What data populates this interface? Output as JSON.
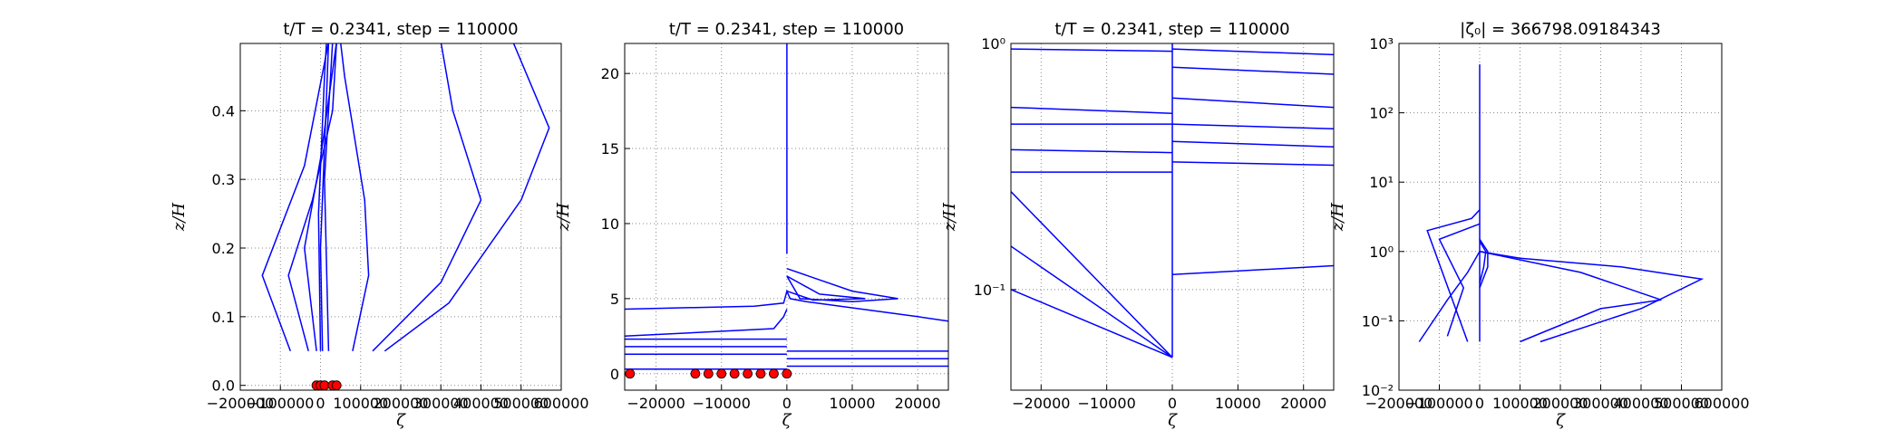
{
  "chart_data": [
    {
      "type": "line",
      "title": "t/T = 0.2341, step = 110000",
      "xlabel": "ζ",
      "ylabel": "z/H",
      "grid": true,
      "xlim": [
        -200000,
        600000
      ],
      "ylim": [
        -0.007,
        0.498
      ],
      "xticks": [
        {
          "value": -200000,
          "label": "−200000"
        },
        {
          "value": -100000,
          "label": "−100000"
        },
        0,
        100000,
        200000,
        300000,
        400000,
        500000,
        600000
      ],
      "yticks": [
        {
          "value": 0,
          "label": "0.0"
        },
        0.1,
        0.2,
        0.3,
        0.4
      ],
      "series": [
        {
          "color": "#0000ff",
          "x": [
            -75000,
            -145000,
            -40000,
            20000
          ],
          "y": [
            0.05,
            0.16,
            0.32,
            0.5
          ]
        },
        {
          "color": "#0000ff",
          "x": [
            -30000,
            -80000,
            -20000,
            30000,
            40000
          ],
          "y": [
            0.05,
            0.16,
            0.27,
            0.4,
            0.5
          ]
        },
        {
          "color": "#0000ff",
          "x": [
            -10000,
            -40000,
            0,
            40000
          ],
          "y": [
            0.05,
            0.2,
            0.33,
            0.5
          ]
        },
        {
          "color": "#0000ff",
          "x": [
            80000,
            120000,
            110000,
            60000,
            50000
          ],
          "y": [
            0.05,
            0.16,
            0.27,
            0.45,
            0.5
          ]
        },
        {
          "color": "#0000ff",
          "x": [
            130000,
            300000,
            400000,
            330000,
            300000
          ],
          "y": [
            0.05,
            0.15,
            0.27,
            0.4,
            0.5
          ]
        },
        {
          "color": "#0000ff",
          "x": [
            160000,
            320000,
            500000,
            570000,
            480000
          ],
          "y": [
            0.05,
            0.12,
            0.27,
            0.375,
            0.5
          ]
        },
        {
          "color": "#0000ff",
          "x": [
            0,
            -5000,
            10000,
            15000
          ],
          "y": [
            0.05,
            0.25,
            0.45,
            0.5
          ]
        },
        {
          "color": "#0000ff",
          "x": [
            5000,
            0,
            15000,
            20000
          ],
          "y": [
            0.05,
            0.2,
            0.42,
            0.5
          ]
        },
        {
          "color": "#0000ff",
          "x": [
            20000,
            10000,
            25000,
            30000
          ],
          "y": [
            0.05,
            0.3,
            0.45,
            0.5
          ]
        },
        {
          "color": "#ff0000",
          "marker": true,
          "x": [
            -10000,
            0,
            10000,
            30000,
            40000
          ],
          "y": [
            0,
            0,
            0,
            0,
            0
          ]
        }
      ]
    },
    {
      "type": "line",
      "title": "t/T = 0.2341, step = 110000",
      "xlabel": "ζ",
      "ylabel": "z/H",
      "grid": true,
      "xlim": [
        -24800,
        24700
      ],
      "ylim": [
        -1.1,
        22
      ],
      "xticks": [
        {
          "value": -20000,
          "label": "−20000"
        },
        {
          "value": -10000,
          "label": "−10000"
        },
        0,
        10000,
        20000
      ],
      "yticks": [
        0,
        5,
        10,
        15,
        20
      ],
      "series": [
        {
          "color": "#0000ff",
          "x": [
            0,
            0,
            0
          ],
          "y": [
            8,
            15,
            22
          ]
        },
        {
          "color": "#0000ff",
          "x": [
            -24800,
            -5000,
            -500,
            0,
            500,
            3000,
            20000,
            24700
          ],
          "y": [
            4.3,
            4.5,
            4.7,
            5.5,
            5,
            4.8,
            3.8,
            3.5
          ]
        },
        {
          "color": "#0000ff",
          "x": [
            0,
            10000,
            17000,
            10000,
            2000,
            0
          ],
          "y": [
            7,
            5.5,
            5,
            4.8,
            5,
            6.5
          ]
        },
        {
          "color": "#0000ff",
          "x": [
            0,
            5000,
            12000,
            4000,
            0
          ],
          "y": [
            6.5,
            5.3,
            5,
            4.9,
            5.5
          ]
        },
        {
          "color": "#0000ff",
          "x": [
            -24800,
            -2000,
            -500,
            0
          ],
          "y": [
            2.5,
            3,
            3.8,
            4.3
          ]
        },
        {
          "color": "#0000ff",
          "x": [
            -24800,
            0
          ],
          "y": [
            2.3,
            2.3
          ]
        },
        {
          "color": "#0000ff",
          "x": [
            -24800,
            0
          ],
          "y": [
            1.8,
            1.8
          ]
        },
        {
          "color": "#0000ff",
          "x": [
            -24800,
            0
          ],
          "y": [
            1.3,
            1.3
          ]
        },
        {
          "color": "#0000ff",
          "x": [
            -24800,
            0
          ],
          "y": [
            0.3,
            0.3
          ]
        },
        {
          "color": "#0000ff",
          "x": [
            0,
            24700
          ],
          "y": [
            1.5,
            1.5
          ]
        },
        {
          "color": "#0000ff",
          "x": [
            0,
            24700
          ],
          "y": [
            1,
            1
          ]
        },
        {
          "color": "#0000ff",
          "x": [
            0,
            24700
          ],
          "y": [
            0.5,
            0.5
          ]
        },
        {
          "color": "#ff0000",
          "marker": true,
          "x": [
            -24000,
            -14000,
            -12000,
            -10000,
            -8000,
            -6000,
            -4000,
            -2000,
            0
          ],
          "y": [
            0,
            0,
            0,
            0,
            0,
            0,
            0,
            0,
            0
          ]
        }
      ]
    },
    {
      "type": "line",
      "title": "t/T = 0.2341, step = 110000",
      "xlabel": "ζ",
      "ylabel": "z/H",
      "grid": true,
      "yscale": "log",
      "xlim": [
        -24600,
        24600
      ],
      "ylim": [
        0.039,
        1
      ],
      "xticks": [
        {
          "value": -20000,
          "label": "−20000"
        },
        {
          "value": -10000,
          "label": "−10000"
        },
        0,
        10000,
        20000
      ],
      "yticks": [
        {
          "value": 0.1,
          "label": "10⁻¹"
        },
        {
          "value": 1,
          "label": "10⁰"
        }
      ],
      "series": [
        {
          "color": "#0000ff",
          "x": [
            0,
            0
          ],
          "y": [
            0.053,
            1
          ]
        },
        {
          "color": "#0000ff",
          "x": [
            0,
            24600
          ],
          "y": [
            0.95,
            0.9
          ]
        },
        {
          "color": "#0000ff",
          "x": [
            0,
            24600
          ],
          "y": [
            0.8,
            0.75
          ]
        },
        {
          "color": "#0000ff",
          "x": [
            0,
            24600
          ],
          "y": [
            0.6,
            0.55
          ]
        },
        {
          "color": "#0000ff",
          "x": [
            0,
            24600
          ],
          "y": [
            0.47,
            0.45
          ]
        },
        {
          "color": "#0000ff",
          "x": [
            0,
            24600
          ],
          "y": [
            0.4,
            0.38
          ]
        },
        {
          "color": "#0000ff",
          "x": [
            0,
            24600
          ],
          "y": [
            0.33,
            0.32
          ]
        },
        {
          "color": "#0000ff",
          "x": [
            -24600,
            0
          ],
          "y": [
            0.95,
            0.93
          ]
        },
        {
          "color": "#0000ff",
          "x": [
            -24600,
            0
          ],
          "y": [
            0.55,
            0.52
          ]
        },
        {
          "color": "#0000ff",
          "x": [
            -24600,
            0
          ],
          "y": [
            0.47,
            0.47
          ]
        },
        {
          "color": "#0000ff",
          "x": [
            -24600,
            0
          ],
          "y": [
            0.37,
            0.36
          ]
        },
        {
          "color": "#0000ff",
          "x": [
            -24600,
            0
          ],
          "y": [
            0.3,
            0.3
          ]
        },
        {
          "color": "#0000ff",
          "x": [
            -24600,
            0
          ],
          "y": [
            0.25,
            0.053
          ]
        },
        {
          "color": "#0000ff",
          "x": [
            -24600,
            0
          ],
          "y": [
            0.15,
            0.053
          ]
        },
        {
          "color": "#0000ff",
          "x": [
            -24600,
            0
          ],
          "y": [
            0.1,
            0.053
          ]
        },
        {
          "color": "#0000ff",
          "x": [
            0,
            24600
          ],
          "y": [
            0.115,
            0.125
          ]
        }
      ]
    },
    {
      "type": "line",
      "title": "|ζ₀| = 366798.09184343",
      "xlabel": "ζ",
      "ylabel": "z/H",
      "grid": true,
      "yscale": "log",
      "xlim": [
        -200000,
        600000
      ],
      "ylim": [
        0.01,
        1000
      ],
      "xticks": [
        {
          "value": -200000,
          "label": "−200000"
        },
        {
          "value": -100000,
          "label": "−100000"
        },
        0,
        100000,
        200000,
        300000,
        400000,
        500000,
        600000
      ],
      "yticks": [
        {
          "value": 0.01,
          "label": "10⁻²"
        },
        {
          "value": 0.1,
          "label": "10⁻¹"
        },
        {
          "value": 1,
          "label": "10⁰"
        },
        {
          "value": 10,
          "label": "10¹"
        },
        {
          "value": 100,
          "label": "10²"
        },
        {
          "value": 1000,
          "label": "10³"
        }
      ],
      "series": [
        {
          "color": "#0000ff",
          "x": [
            0,
            0
          ],
          "y": [
            0.05,
            500
          ]
        },
        {
          "color": "#0000ff",
          "x": [
            -30000,
            -130000,
            -20000,
            0
          ],
          "y": [
            0.05,
            2,
            3,
            4
          ]
        },
        {
          "color": "#0000ff",
          "x": [
            150000,
            400000,
            550000,
            350000,
            100000,
            0
          ],
          "y": [
            0.05,
            0.15,
            0.4,
            0.6,
            0.8,
            1
          ]
        },
        {
          "color": "#0000ff",
          "x": [
            100000,
            300000,
            450000,
            250000,
            0
          ],
          "y": [
            0.05,
            0.15,
            0.2,
            0.5,
            1
          ]
        },
        {
          "color": "#0000ff",
          "x": [
            -150000,
            -80000,
            -30000,
            0
          ],
          "y": [
            0.05,
            0.2,
            0.5,
            1
          ]
        },
        {
          "color": "#0000ff",
          "x": [
            -80000,
            -40000,
            -100000,
            0
          ],
          "y": [
            0.06,
            0.3,
            1.5,
            2.5
          ]
        },
        {
          "color": "#0000ff",
          "x": [
            0,
            20000,
            20000,
            0
          ],
          "y": [
            0.3,
            0.6,
            1,
            1.5
          ]
        },
        {
          "color": "#0000ff",
          "x": [
            0,
            10000,
            15000,
            0
          ],
          "y": [
            0.35,
            0.6,
            1,
            1.4
          ]
        }
      ]
    }
  ]
}
